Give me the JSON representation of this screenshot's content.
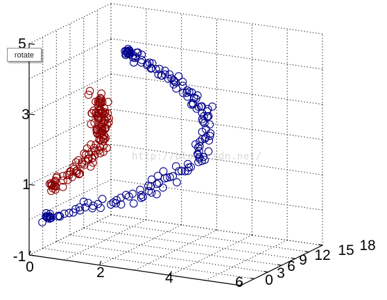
{
  "tooltip": {
    "label": "rotate"
  },
  "watermark": {
    "text": "http://blog.csdn.net/"
  },
  "colors": {
    "series_blue": "#00008b",
    "series_red": "#8b0000",
    "axis": "#000000",
    "grid": "#000000"
  },
  "chart_data": {
    "type": "scatter",
    "projection": "3d",
    "title": "",
    "xlabel": "",
    "ylabel": "",
    "zlabel": "",
    "xlim": [
      0,
      6
    ],
    "ylim": [
      0,
      18
    ],
    "zlim": [
      -1,
      5
    ],
    "x_ticks": [
      "0",
      "2",
      "4",
      "6"
    ],
    "y_ticks": [
      "0",
      "3",
      "6",
      "9",
      "12",
      "15",
      "18"
    ],
    "z_ticks": [
      "-1",
      "1",
      "3",
      "5"
    ],
    "grid": true,
    "marker": "open-circle",
    "series": [
      {
        "color": "#00008b",
        "description": "blue open-circle helix-like arc",
        "points_per_path": 90
      },
      {
        "color": "#8b0000",
        "description": "dark red open-circle cluster",
        "points_per_path": 70
      }
    ]
  }
}
